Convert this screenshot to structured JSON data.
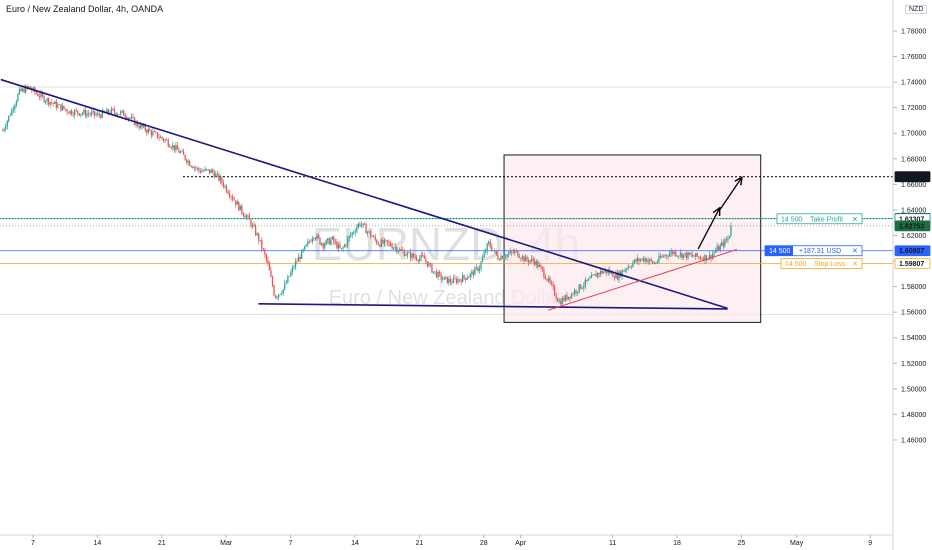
{
  "header": {
    "title": "Euro / New Zealand Dollar, 4h, OANDA",
    "currency": "NZD"
  },
  "watermark": {
    "symbol": "EURNZD, 4h",
    "name": "Euro / New Zealand Dollar"
  },
  "colors": {
    "up": "#26a69a",
    "down": "#ef5350",
    "trendline": "#1a1a7e",
    "support": "#e5405e",
    "take_profit": "#26a69a",
    "entry": "#2962ff",
    "stop_loss": "#f5a623",
    "zone_fill": "#fce8ec"
  },
  "chart_data": {
    "type": "candlestick",
    "title": "",
    "symbol": "EURNZD",
    "timeframe": "4h",
    "y_ticks": [
      "1.78000",
      "1.76000",
      "1.74000",
      "1.72000",
      "1.70000",
      "1.68000",
      "1.66000",
      "1.64000",
      "1.62000",
      "1.60000",
      "1.58000",
      "1.56000",
      "1.54000",
      "1.52000",
      "1.50000",
      "1.48000",
      "1.46000"
    ],
    "x_ticks": [
      {
        "label": "7",
        "day": 7
      },
      {
        "label": "14",
        "day": 14
      },
      {
        "label": "21",
        "day": 21
      },
      {
        "label": "Mar",
        "day": 28
      },
      {
        "label": "7",
        "day": 35
      },
      {
        "label": "14",
        "day": 42
      },
      {
        "label": "21",
        "day": 49
      },
      {
        "label": "28",
        "day": 56
      },
      {
        "label": "Apr",
        "day": 60
      },
      {
        "label": "11",
        "day": 70
      },
      {
        "label": "18",
        "day": 77
      },
      {
        "label": "25",
        "day": 84
      },
      {
        "label": "May",
        "day": 90
      },
      {
        "label": "9",
        "day": 98
      }
    ],
    "price_path": [
      [
        3.7,
        1.702
      ],
      [
        4.5,
        1.715
      ],
      [
        5.5,
        1.732
      ],
      [
        6.5,
        1.736
      ],
      [
        8,
        1.728
      ],
      [
        9.5,
        1.722
      ],
      [
        11,
        1.717
      ],
      [
        12.5,
        1.716
      ],
      [
        14,
        1.714
      ],
      [
        15.5,
        1.717
      ],
      [
        17,
        1.715
      ],
      [
        18.5,
        1.706
      ],
      [
        20,
        1.7
      ],
      [
        21.5,
        1.694
      ],
      [
        23,
        1.685
      ],
      [
        24,
        1.677
      ],
      [
        25,
        1.671
      ],
      [
        26.5,
        1.67
      ],
      [
        27.5,
        1.662
      ],
      [
        28.5,
        1.652
      ],
      [
        29.5,
        1.641
      ],
      [
        30.5,
        1.632
      ],
      [
        31.5,
        1.618
      ],
      [
        32.5,
        1.598
      ],
      [
        33.3,
        1.572
      ],
      [
        34.2,
        1.578
      ],
      [
        35.5,
        1.598
      ],
      [
        36.5,
        1.609
      ],
      [
        37.5,
        1.621
      ],
      [
        38.5,
        1.613
      ],
      [
        39.5,
        1.617
      ],
      [
        40.5,
        1.608
      ],
      [
        41.5,
        1.62
      ],
      [
        42.5,
        1.63
      ],
      [
        43.5,
        1.622
      ],
      [
        44.5,
        1.614
      ],
      [
        45.5,
        1.614
      ],
      [
        46.5,
        1.61
      ],
      [
        47.5,
        1.606
      ],
      [
        48.5,
        1.603
      ],
      [
        49.5,
        1.602
      ],
      [
        50.5,
        1.592
      ],
      [
        51.5,
        1.586
      ],
      [
        52.5,
        1.584
      ],
      [
        53.5,
        1.586
      ],
      [
        54.5,
        1.589
      ],
      [
        55.5,
        1.595
      ],
      [
        56.5,
        1.614
      ],
      [
        57.5,
        1.603
      ],
      [
        58.5,
        1.605
      ],
      [
        59.5,
        1.607
      ],
      [
        60.5,
        1.601
      ],
      [
        61.5,
        1.6
      ],
      [
        62.5,
        1.591
      ],
      [
        63.5,
        1.578
      ],
      [
        64.2,
        1.568
      ],
      [
        65.5,
        1.574
      ],
      [
        66.5,
        1.58
      ],
      [
        67.5,
        1.585
      ],
      [
        68.5,
        1.591
      ],
      [
        69.5,
        1.592
      ],
      [
        70.5,
        1.588
      ],
      [
        71.5,
        1.595
      ],
      [
        72.5,
        1.6
      ],
      [
        73.5,
        1.602
      ],
      [
        74.5,
        1.598
      ],
      [
        75.5,
        1.604
      ],
      [
        76.5,
        1.607
      ],
      [
        77.5,
        1.605
      ],
      [
        78.5,
        1.604
      ],
      [
        79.5,
        1.603
      ],
      [
        80.5,
        1.603
      ],
      [
        81.5,
        1.61
      ],
      [
        82.5,
        1.617
      ],
      [
        83,
        1.627
      ]
    ],
    "trendline_descending": {
      "from": [
        3.5,
        1.742
      ],
      "to": [
        82.5,
        1.563
      ]
    },
    "support_line": {
      "from": [
        31.5,
        1.5665
      ],
      "to": [
        82.5,
        1.5625
      ]
    },
    "rising_support": {
      "from": [
        63.0,
        1.5615
      ],
      "to": [
        83.5,
        1.609
      ]
    },
    "zone": {
      "from_day": 58.2,
      "to_day": 86.1,
      "top": 1.683,
      "bottom": 1.552
    },
    "arrows": [
      {
        "from": [
          79.3,
          1.6095
        ],
        "to": [
          81.6,
          1.641
        ]
      },
      {
        "from": [
          81.7,
          1.6405
        ],
        "to": [
          84.0,
          1.665
        ]
      }
    ],
    "levels": [
      {
        "price": 1.666,
        "label": "1.66600",
        "style": "dotted",
        "color": "#131722"
      },
      {
        "price": 1.63334,
        "label": "1.63334",
        "style": "dotted",
        "color": "#131722"
      },
      {
        "price": 1.63307,
        "label": "1.63307",
        "style": "solid",
        "color": "#26a69a"
      },
      {
        "price": 1.62753,
        "label": "1.62753",
        "style": "dotted",
        "color": "#888888"
      },
      {
        "price": 1.60807,
        "label": "1.60807",
        "style": "solid",
        "color": "#2962ff"
      },
      {
        "price": 1.59807,
        "label": "1.59807",
        "style": "solid",
        "color": "#f5a623"
      }
    ],
    "current_price": {
      "price": 1.62753,
      "label": "1.62753"
    },
    "positions": {
      "take_profit": {
        "qty": "14 500",
        "label": "Take Profit",
        "close": "✕",
        "price": 1.63307
      },
      "entry": {
        "qty": "14 500",
        "pnl": "+187.31 USD",
        "close": "✕",
        "price": 1.60807
      },
      "stop_loss": {
        "qty": "14 500",
        "label": "Stop Loss",
        "close": "✕",
        "price": 1.59807
      }
    }
  }
}
